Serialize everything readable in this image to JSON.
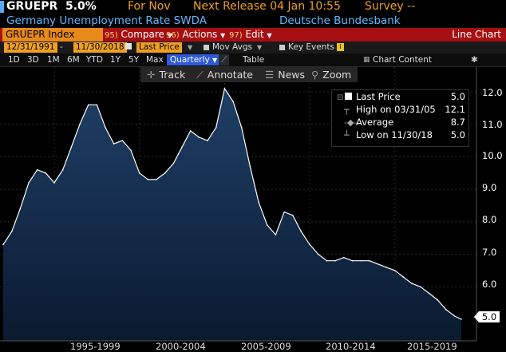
{
  "header": {
    "ticker": "GRUEPR",
    "value": "5.0%",
    "for_label": "For Nov",
    "next_release": "Next Release 04 Jan 10:55",
    "survey": "Survey --"
  },
  "subheader": {
    "title": "Germany Unemployment Rate SWDA",
    "source": "Deutsche Bundesbank"
  },
  "menu": {
    "index": "GRUEPR Index",
    "compare_num": "95)",
    "compare": "Compare",
    "actions_num": "96)",
    "actions": "Actions",
    "edit_num": "97)",
    "edit": "Edit",
    "view": "Line Chart"
  },
  "range": {
    "start": "12/31/1991",
    "end": "11/30/2018",
    "field": "Last Price",
    "mov_avgs": "Mov Avgs",
    "key_events": "Key Events"
  },
  "periods": {
    "items": [
      "1D",
      "3D",
      "1M",
      "6M",
      "YTD",
      "1Y",
      "5Y",
      "Max"
    ],
    "frequency": "Quarterly",
    "table": "Table",
    "chart_content": "Chart Content"
  },
  "toolbar": {
    "track": "Track",
    "annotate": "Annotate",
    "news": "News",
    "zoom": "Zoom"
  },
  "legend": {
    "last_price_label": "Last Price",
    "last_price_value": "5.0",
    "high_label": "High on 03/31/05",
    "high_value": "12.1",
    "average_label": "Average",
    "average_value": "8.7",
    "low_label": "Low on 11/30/18",
    "low_value": "5.0"
  },
  "colors": {
    "accent_orange": "#f0a020",
    "menu_red": "#a60f12",
    "area_fill_top": "#1f3f66",
    "area_fill_bottom": "#0a1a30",
    "line": "#ffffff"
  },
  "chart_data": {
    "type": "area",
    "ylim": [
      4.5,
      12.4
    ],
    "yticks": [
      "12.0",
      "11.0",
      "10.0",
      "9.0",
      "8.0",
      "7.0",
      "6.0"
    ],
    "last_value_label": "5.0",
    "xticks": [
      "1995-1999",
      "2000-2004",
      "2005-2009",
      "2010-2014",
      "2015-2019"
    ],
    "x": [
      1992.0,
      1992.5,
      1993.0,
      1993.5,
      1994.0,
      1994.5,
      1995.0,
      1995.5,
      1996.0,
      1996.5,
      1997.0,
      1997.5,
      1998.0,
      1998.5,
      1999.0,
      1999.5,
      2000.0,
      2000.5,
      2001.0,
      2001.5,
      2002.0,
      2002.5,
      2003.0,
      2003.5,
      2004.0,
      2004.5,
      2005.0,
      2005.5,
      2006.0,
      2006.5,
      2007.0,
      2007.5,
      2008.0,
      2008.5,
      2009.0,
      2009.5,
      2010.0,
      2010.5,
      2011.0,
      2011.5,
      2012.0,
      2012.5,
      2013.0,
      2013.5,
      2014.0,
      2014.5,
      2015.0,
      2015.5,
      2016.0,
      2016.5,
      2017.0,
      2017.5,
      2018.0,
      2018.5,
      2018.9
    ],
    "values": [
      7.3,
      7.7,
      8.4,
      9.2,
      9.6,
      9.5,
      9.2,
      9.6,
      10.3,
      11.0,
      11.6,
      11.6,
      10.9,
      10.4,
      10.5,
      10.2,
      9.5,
      9.3,
      9.3,
      9.5,
      9.8,
      10.3,
      10.8,
      10.6,
      10.5,
      10.9,
      12.1,
      11.7,
      10.9,
      9.7,
      8.6,
      7.9,
      7.6,
      8.3,
      8.2,
      7.7,
      7.3,
      7.0,
      6.8,
      6.8,
      6.9,
      6.8,
      6.8,
      6.8,
      6.7,
      6.6,
      6.5,
      6.3,
      6.1,
      6.0,
      5.8,
      5.6,
      5.3,
      5.1,
      5.0
    ]
  }
}
